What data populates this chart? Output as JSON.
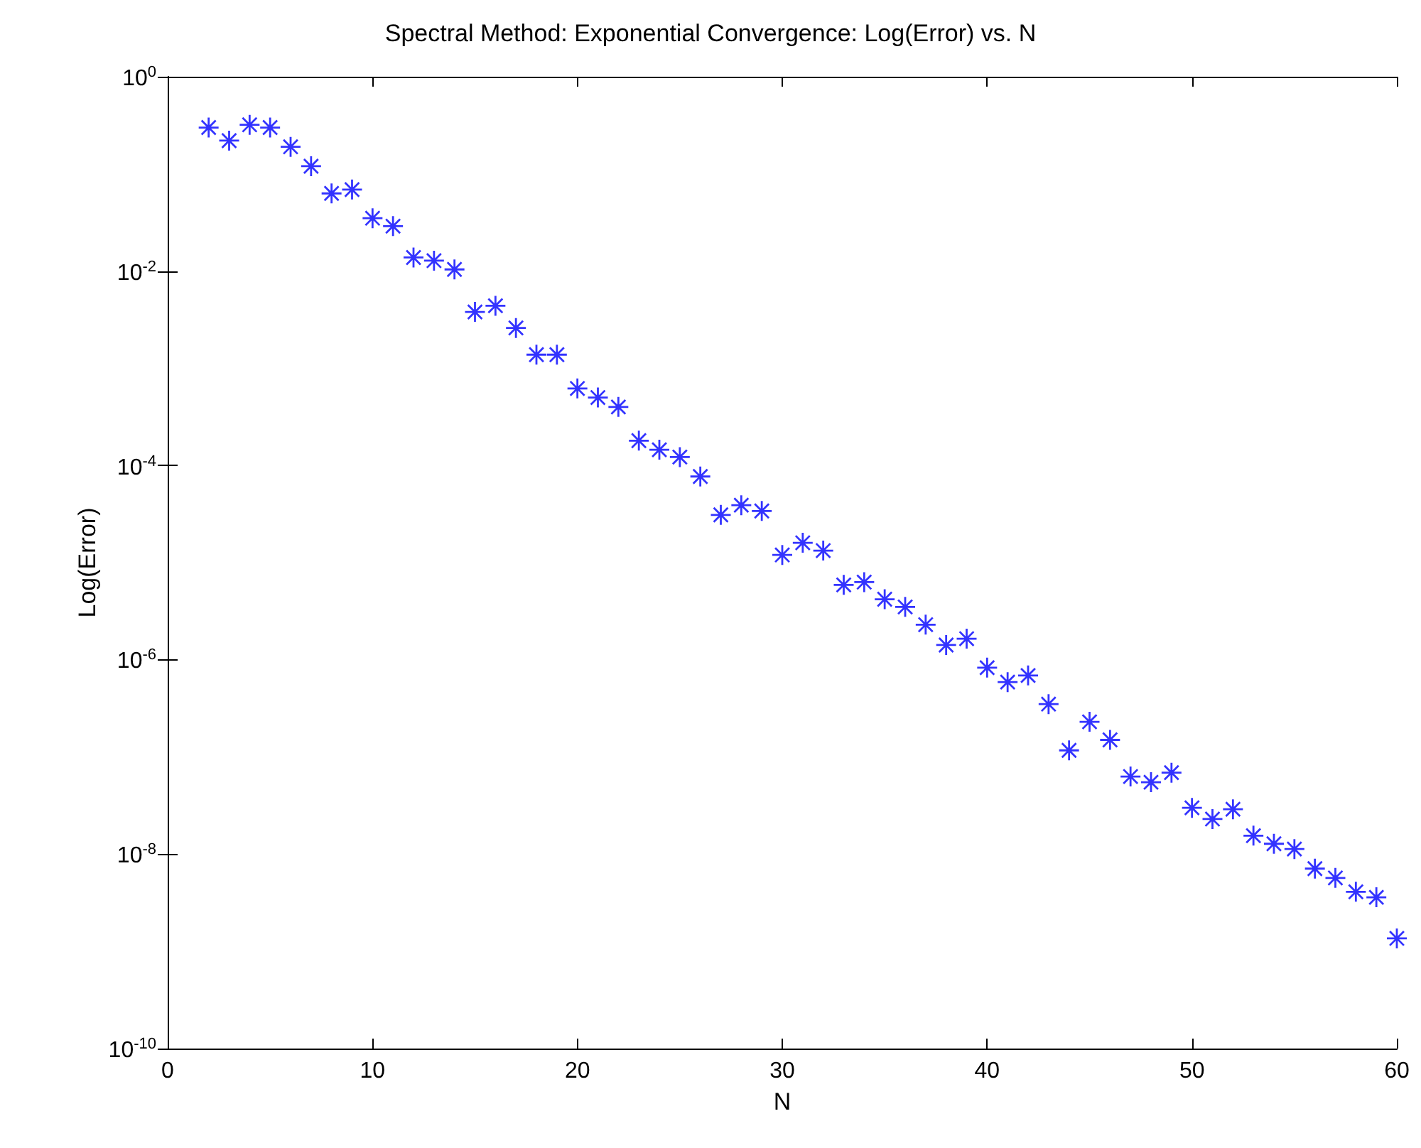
{
  "chart_data": {
    "type": "scatter",
    "title": "Spectral Method: Exponential Convergence: Log(Error) vs. N",
    "xlabel": "N",
    "ylabel": "Log(Error)",
    "x": [
      2,
      3,
      4,
      5,
      6,
      7,
      8,
      9,
      10,
      11,
      12,
      13,
      14,
      15,
      16,
      17,
      18,
      19,
      20,
      21,
      22,
      23,
      24,
      25,
      26,
      27,
      28,
      29,
      30,
      31,
      32,
      33,
      34,
      35,
      36,
      37,
      38,
      39,
      40,
      41,
      42,
      43,
      44,
      45,
      46,
      47,
      48,
      49,
      50,
      51,
      52,
      53,
      54,
      55,
      56,
      57,
      58,
      59,
      60
    ],
    "series": [
      {
        "color": "#0000ff",
        "values": [
          0.3,
          0.22,
          0.32,
          0.3,
          0.19,
          0.12,
          0.063,
          0.069,
          0.035,
          0.029,
          0.0138,
          0.0128,
          0.0104,
          0.0038,
          0.0044,
          0.0026,
          0.00138,
          0.00138,
          0.00062,
          0.0005,
          0.0004,
          0.00018,
          0.000145,
          0.000122,
          7.7e-05,
          3.1e-05,
          3.9e-05,
          3.4e-05,
          1.2e-05,
          1.6e-05,
          1.33e-05,
          5.9e-06,
          6.3e-06,
          4.2e-06,
          3.5e-06,
          2.3e-06,
          1.42e-06,
          1.65e-06,
          8.3e-07,
          5.9e-07,
          6.9e-07,
          3.5e-07,
          1.17e-07,
          2.3e-07,
          1.5e-07,
          6.3e-08,
          5.5e-08,
          6.9e-08,
          3e-08,
          2.3e-08,
          2.9e-08,
          1.55e-08,
          1.28e-08,
          1.13e-08,
          7.1e-09,
          5.7e-09,
          4.1e-09,
          3.6e-09,
          1.36e-09
        ]
      }
    ],
    "xlim": [
      0,
      60
    ],
    "xticks": [
      0,
      10,
      20,
      30,
      40,
      50,
      60
    ],
    "ylim": [
      1e-10,
      1
    ],
    "log": "y",
    "yticks": [
      {
        "value": 1e-10,
        "label": "10$^{-10}$"
      },
      {
        "value": 1e-08,
        "label": "10$^{-8}$"
      },
      {
        "value": 1e-06,
        "label": "10$^{-6}$"
      },
      {
        "value": 0.0001,
        "label": "10$^{-4}$"
      },
      {
        "value": 0.01,
        "label": "10$^{-2}$"
      },
      {
        "value": 1,
        "label": "10$^{0}$"
      }
    ],
    "grid": false,
    "marker": "star"
  }
}
